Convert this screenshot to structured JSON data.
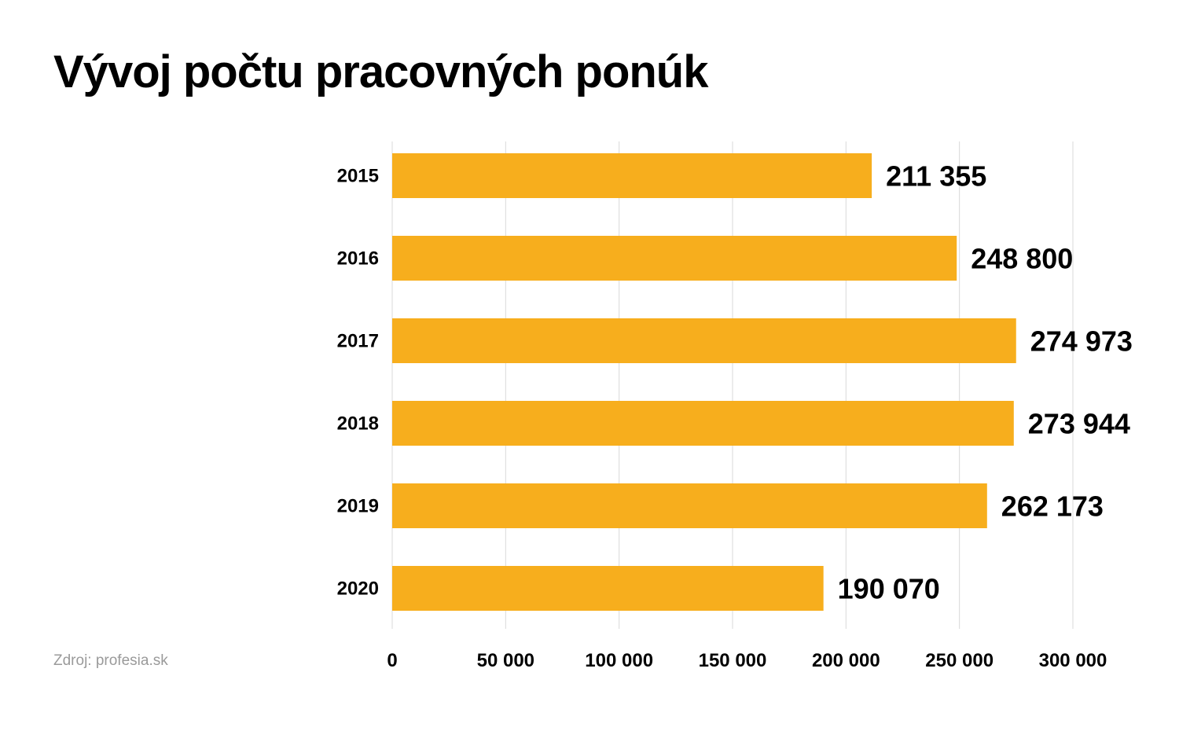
{
  "title": "Vývoj počtu pracovných ponúk",
  "source": "Zdroj: profesia.sk",
  "colors": {
    "bar": "#F7AE1D",
    "grid": "#d9d9d9",
    "text": "#000000"
  },
  "chart_data": {
    "type": "bar",
    "orientation": "horizontal",
    "categories": [
      "2015",
      "2016",
      "2017",
      "2018",
      "2019",
      "2020"
    ],
    "values": [
      211355,
      248800,
      274973,
      273944,
      262173,
      190070
    ],
    "value_labels": [
      "211 355",
      "248 800",
      "274 973",
      "273 944",
      "262 173",
      "190 070"
    ],
    "xlim": [
      0,
      300000
    ],
    "xticks": [
      0,
      50000,
      100000,
      150000,
      200000,
      250000,
      300000
    ],
    "xtick_labels": [
      "0",
      "50 000",
      "100 000",
      "150 000",
      "200 000",
      "250 000",
      "300 000"
    ],
    "grid": true,
    "legend": false
  }
}
